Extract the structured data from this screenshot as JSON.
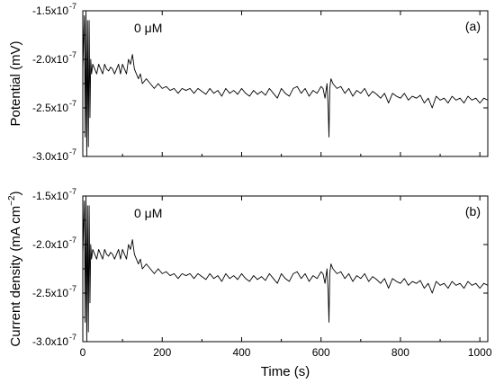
{
  "chart_data": [
    {
      "type": "line",
      "panel_label": "(a)",
      "annotation": "0 μM",
      "ylabel": "Potential (mV)",
      "xlabel": "",
      "xlim": [
        0,
        1020
      ],
      "ylim": [
        -3e-07,
        -1.5e-07
      ],
      "y_ticks": [
        -1.5e-07,
        -2e-07,
        -2.5e-07,
        -3e-07
      ],
      "y_tick_labels": [
        "-1.5x10",
        "-2.0x10",
        "-2.5x10",
        "-3.0x10"
      ],
      "y_tick_exponent": "-7",
      "x_ticks": [
        0,
        200,
        400,
        600,
        800,
        1000
      ],
      "x_tick_labels": [
        "",
        "",
        "",
        "",
        "",
        ""
      ],
      "series": [
        {
          "x": [
            0,
            4,
            6,
            8,
            10,
            12,
            14,
            16,
            18,
            20,
            22,
            25,
            30,
            35,
            40,
            45,
            50,
            55,
            60,
            65,
            70,
            75,
            80,
            85,
            90,
            95,
            100,
            105,
            110,
            115,
            120,
            125,
            130,
            135,
            140,
            145,
            150,
            160,
            170,
            180,
            190,
            200,
            210,
            220,
            230,
            240,
            250,
            260,
            270,
            280,
            290,
            300,
            310,
            320,
            330,
            340,
            350,
            360,
            370,
            380,
            390,
            400,
            410,
            420,
            430,
            440,
            450,
            460,
            470,
            480,
            490,
            500,
            510,
            520,
            530,
            540,
            550,
            560,
            570,
            580,
            590,
            600,
            605,
            610,
            615,
            618,
            620,
            622,
            625,
            630,
            640,
            650,
            660,
            670,
            680,
            690,
            700,
            710,
            720,
            730,
            740,
            750,
            760,
            770,
            780,
            790,
            800,
            810,
            820,
            830,
            840,
            850,
            860,
            870,
            880,
            890,
            900,
            910,
            920,
            930,
            940,
            950,
            960,
            970,
            980,
            990,
            1000,
            1010,
            1020
          ],
          "y": [
            -2.1e-07,
            -1.55e-07,
            -2.8e-07,
            -1.5e-07,
            -3e-07,
            -1.6e-07,
            -2.9e-07,
            -1.6e-07,
            -2.6e-07,
            -2e-07,
            -2.15e-07,
            -2.05e-07,
            -2.1e-07,
            -2.15e-07,
            -2.05e-07,
            -2.1e-07,
            -2.15e-07,
            -2.05e-07,
            -2.1e-07,
            -2.12e-07,
            -2.08e-07,
            -2.1e-07,
            -2.15e-07,
            -2.1e-07,
            -2.05e-07,
            -2.15e-07,
            -2.05e-07,
            -2.1e-07,
            -2.15e-07,
            -2e-07,
            -2.05e-07,
            -1.95e-07,
            -2.1e-07,
            -2.15e-07,
            -2.2e-07,
            -2.15e-07,
            -2.25e-07,
            -2.2e-07,
            -2.25e-07,
            -2.3e-07,
            -2.25e-07,
            -2.3e-07,
            -2.28e-07,
            -2.32e-07,
            -2.3e-07,
            -2.35e-07,
            -2.3e-07,
            -2.32e-07,
            -2.3e-07,
            -2.35e-07,
            -2.3e-07,
            -2.33e-07,
            -2.36e-07,
            -2.3e-07,
            -2.35e-07,
            -2.32e-07,
            -2.38e-07,
            -2.3e-07,
            -2.35e-07,
            -2.32e-07,
            -2.36e-07,
            -2.3e-07,
            -2.35e-07,
            -2.38e-07,
            -2.32e-07,
            -2.36e-07,
            -2.33e-07,
            -2.37e-07,
            -2.3e-07,
            -2.35e-07,
            -2.4e-07,
            -2.3e-07,
            -2.35e-07,
            -2.38e-07,
            -2.3e-07,
            -2.28e-07,
            -2.35e-07,
            -2.3e-07,
            -2.38e-07,
            -2.32e-07,
            -2.35e-07,
            -2.28e-07,
            -2.3e-07,
            -2.4e-07,
            -2.25e-07,
            -2.5e-07,
            -2.8e-07,
            -2.3e-07,
            -2.2e-07,
            -2.25e-07,
            -2.3e-07,
            -2.28e-07,
            -2.35e-07,
            -2.3e-07,
            -2.38e-07,
            -2.32e-07,
            -2.35e-07,
            -2.3e-07,
            -2.38e-07,
            -2.33e-07,
            -2.36e-07,
            -2.4e-07,
            -2.35e-07,
            -2.45e-07,
            -2.35e-07,
            -2.38e-07,
            -2.4e-07,
            -2.35e-07,
            -2.42e-07,
            -2.38e-07,
            -2.4e-07,
            -2.37e-07,
            -2.45e-07,
            -2.4e-07,
            -2.5e-07,
            -2.38e-07,
            -2.42e-07,
            -2.4e-07,
            -2.45e-07,
            -2.38e-07,
            -2.42e-07,
            -2.4e-07,
            -2.45e-07,
            -2.38e-07,
            -2.42e-07,
            -2.4e-07,
            -2.45e-07,
            -2.4e-07,
            -2.42e-07
          ]
        }
      ]
    },
    {
      "type": "line",
      "panel_label": "(b)",
      "annotation": "0 μM",
      "ylabel": "Current density (mA cm",
      "ylabel_sup": "−2",
      "ylabel_end": ")",
      "xlabel": "Time (s)",
      "xlim": [
        0,
        1020
      ],
      "ylim": [
        -3e-07,
        -1.5e-07
      ],
      "y_ticks": [
        -1.5e-07,
        -2e-07,
        -2.5e-07,
        -3e-07
      ],
      "y_tick_labels": [
        "-1.5x10",
        "-2.0x10",
        "-2.5x10",
        "-3.0x10"
      ],
      "y_tick_exponent": "-7",
      "x_ticks": [
        0,
        200,
        400,
        600,
        800,
        1000
      ],
      "x_tick_labels": [
        "0",
        "200",
        "400",
        "600",
        "800",
        "1000"
      ],
      "series": [
        {
          "x": [
            0,
            4,
            6,
            8,
            10,
            12,
            14,
            16,
            18,
            20,
            22,
            25,
            30,
            35,
            40,
            45,
            50,
            55,
            60,
            65,
            70,
            75,
            80,
            85,
            90,
            95,
            100,
            105,
            110,
            115,
            120,
            125,
            130,
            135,
            140,
            145,
            150,
            160,
            170,
            180,
            190,
            200,
            210,
            220,
            230,
            240,
            250,
            260,
            270,
            280,
            290,
            300,
            310,
            320,
            330,
            340,
            350,
            360,
            370,
            380,
            390,
            400,
            410,
            420,
            430,
            440,
            450,
            460,
            470,
            480,
            490,
            500,
            510,
            520,
            530,
            540,
            550,
            560,
            570,
            580,
            590,
            600,
            605,
            610,
            615,
            618,
            620,
            622,
            625,
            630,
            640,
            650,
            660,
            670,
            680,
            690,
            700,
            710,
            720,
            730,
            740,
            750,
            760,
            770,
            780,
            790,
            800,
            810,
            820,
            830,
            840,
            850,
            860,
            870,
            880,
            890,
            900,
            910,
            920,
            930,
            940,
            950,
            960,
            970,
            980,
            990,
            1000,
            1010,
            1020
          ],
          "y": [
            -2.1e-07,
            -1.55e-07,
            -2.8e-07,
            -1.5e-07,
            -3e-07,
            -1.6e-07,
            -2.9e-07,
            -1.6e-07,
            -2.6e-07,
            -2e-07,
            -2.15e-07,
            -2.05e-07,
            -2.1e-07,
            -2.15e-07,
            -2.05e-07,
            -2.1e-07,
            -2.15e-07,
            -2.05e-07,
            -2.1e-07,
            -2.12e-07,
            -2.08e-07,
            -2.1e-07,
            -2.15e-07,
            -2.1e-07,
            -2.05e-07,
            -2.15e-07,
            -2.05e-07,
            -2.1e-07,
            -2.15e-07,
            -2e-07,
            -2.05e-07,
            -1.95e-07,
            -2.1e-07,
            -2.15e-07,
            -2.2e-07,
            -2.15e-07,
            -2.25e-07,
            -2.2e-07,
            -2.25e-07,
            -2.3e-07,
            -2.25e-07,
            -2.3e-07,
            -2.28e-07,
            -2.32e-07,
            -2.3e-07,
            -2.35e-07,
            -2.3e-07,
            -2.32e-07,
            -2.3e-07,
            -2.35e-07,
            -2.3e-07,
            -2.33e-07,
            -2.36e-07,
            -2.3e-07,
            -2.35e-07,
            -2.32e-07,
            -2.38e-07,
            -2.3e-07,
            -2.35e-07,
            -2.32e-07,
            -2.36e-07,
            -2.3e-07,
            -2.35e-07,
            -2.38e-07,
            -2.32e-07,
            -2.36e-07,
            -2.33e-07,
            -2.37e-07,
            -2.3e-07,
            -2.35e-07,
            -2.4e-07,
            -2.3e-07,
            -2.35e-07,
            -2.38e-07,
            -2.3e-07,
            -2.28e-07,
            -2.35e-07,
            -2.3e-07,
            -2.38e-07,
            -2.32e-07,
            -2.35e-07,
            -2.28e-07,
            -2.3e-07,
            -2.4e-07,
            -2.25e-07,
            -2.5e-07,
            -2.8e-07,
            -2.3e-07,
            -2.2e-07,
            -2.25e-07,
            -2.3e-07,
            -2.28e-07,
            -2.35e-07,
            -2.3e-07,
            -2.38e-07,
            -2.32e-07,
            -2.35e-07,
            -2.3e-07,
            -2.38e-07,
            -2.33e-07,
            -2.36e-07,
            -2.4e-07,
            -2.35e-07,
            -2.45e-07,
            -2.35e-07,
            -2.38e-07,
            -2.4e-07,
            -2.35e-07,
            -2.42e-07,
            -2.38e-07,
            -2.4e-07,
            -2.37e-07,
            -2.45e-07,
            -2.4e-07,
            -2.5e-07,
            -2.38e-07,
            -2.42e-07,
            -2.4e-07,
            -2.45e-07,
            -2.38e-07,
            -2.42e-07,
            -2.4e-07,
            -2.45e-07,
            -2.38e-07,
            -2.42e-07,
            -2.4e-07,
            -2.45e-07,
            -2.4e-07,
            -2.42e-07
          ]
        }
      ]
    }
  ]
}
